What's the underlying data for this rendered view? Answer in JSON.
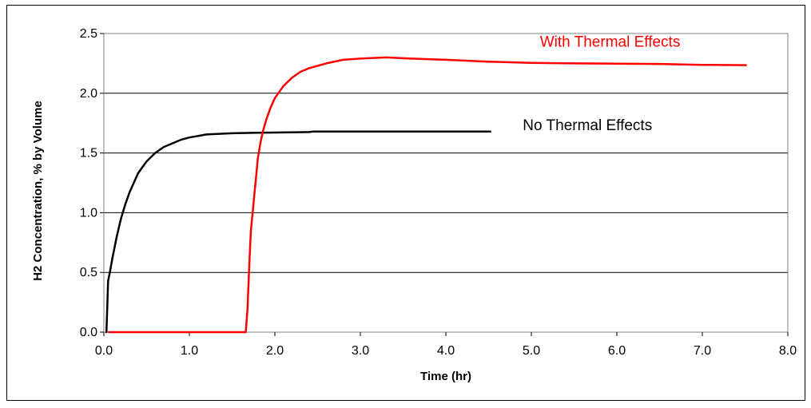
{
  "chart_data": {
    "type": "line",
    "title": "",
    "xlabel": "Time  (hr)",
    "ylabel": "H2 Concentration, % by Volume",
    "xlim": [
      0,
      8
    ],
    "ylim": [
      0,
      2.5
    ],
    "x_ticks": [
      "0.0",
      "1.0",
      "2.0",
      "3.0",
      "4.0",
      "5.0",
      "6.0",
      "7.0",
      "8.0"
    ],
    "y_ticks": [
      "0.0",
      "0.5",
      "1.0",
      "1.5",
      "2.0",
      "2.5"
    ],
    "grid": "horizontal",
    "colors": {
      "No Thermal Effects": "#000000",
      "With Thermal Effects": "#ff0000"
    },
    "series": [
      {
        "name": "No Thermal Effects",
        "label_pos": [
          4.9,
          1.69
        ],
        "points": [
          [
            0.02,
            0.0
          ],
          [
            0.03,
            0.0
          ],
          [
            0.04,
            0.22
          ],
          [
            0.05,
            0.43
          ],
          [
            0.07,
            0.5
          ],
          [
            0.1,
            0.62
          ],
          [
            0.15,
            0.8
          ],
          [
            0.2,
            0.95
          ],
          [
            0.25,
            1.07
          ],
          [
            0.3,
            1.17
          ],
          [
            0.35,
            1.25
          ],
          [
            0.4,
            1.33
          ],
          [
            0.5,
            1.43
          ],
          [
            0.6,
            1.5
          ],
          [
            0.7,
            1.55
          ],
          [
            0.8,
            1.58
          ],
          [
            0.9,
            1.61
          ],
          [
            1.0,
            1.63
          ],
          [
            1.2,
            1.655
          ],
          [
            1.5,
            1.665
          ],
          [
            1.8,
            1.67
          ],
          [
            2.4,
            1.675
          ],
          [
            2.45,
            1.68
          ],
          [
            3.0,
            1.68
          ],
          [
            4.53,
            1.68
          ]
        ]
      },
      {
        "name": "With Thermal Effects",
        "label_pos": [
          5.1,
          2.39
        ],
        "points": [
          [
            0.05,
            0.0
          ],
          [
            1.66,
            0.0
          ],
          [
            1.68,
            0.2
          ],
          [
            1.7,
            0.55
          ],
          [
            1.72,
            0.85
          ],
          [
            1.74,
            1.0
          ],
          [
            1.76,
            1.15
          ],
          [
            1.78,
            1.3
          ],
          [
            1.8,
            1.45
          ],
          [
            1.83,
            1.58
          ],
          [
            1.86,
            1.68
          ],
          [
            1.9,
            1.78
          ],
          [
            1.95,
            1.88
          ],
          [
            2.0,
            1.96
          ],
          [
            2.1,
            2.06
          ],
          [
            2.2,
            2.13
          ],
          [
            2.3,
            2.18
          ],
          [
            2.4,
            2.21
          ],
          [
            2.6,
            2.25
          ],
          [
            2.8,
            2.28
          ],
          [
            3.0,
            2.29
          ],
          [
            3.3,
            2.3
          ],
          [
            3.6,
            2.29
          ],
          [
            4.0,
            2.28
          ],
          [
            4.5,
            2.265
          ],
          [
            5.0,
            2.255
          ],
          [
            5.5,
            2.25
          ],
          [
            6.0,
            2.248
          ],
          [
            6.5,
            2.245
          ],
          [
            7.0,
            2.238
          ],
          [
            7.52,
            2.235
          ]
        ]
      }
    ]
  }
}
